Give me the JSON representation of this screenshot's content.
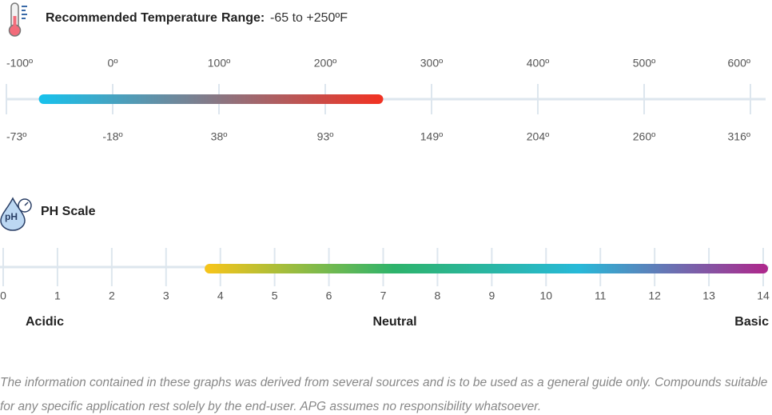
{
  "temperature": {
    "title": "Recommended Temperature",
    "range_label": "Range:",
    "range_text": "-65 to +250ºF",
    "xlim": [
      -100,
      600
    ],
    "fahrenheit_ticks": [
      {
        "value": -100,
        "label": "-100º"
      },
      {
        "value": 0,
        "label": "0º"
      },
      {
        "value": 100,
        "label": "100º"
      },
      {
        "value": 200,
        "label": "200º"
      },
      {
        "value": 300,
        "label": "300º"
      },
      {
        "value": 400,
        "label": "400º"
      },
      {
        "value": 500,
        "label": "500º"
      },
      {
        "value": 600,
        "label": "600º"
      }
    ],
    "celsius_ticks": [
      {
        "value": -73,
        "label": "-73º"
      },
      {
        "value": -18,
        "label": "-18º"
      },
      {
        "value": 38,
        "label": "38º"
      },
      {
        "value": 93,
        "label": "93º"
      },
      {
        "value": 149,
        "label": "149º"
      },
      {
        "value": 204,
        "label": "204º"
      },
      {
        "value": 260,
        "label": "260º"
      },
      {
        "value": 316,
        "label": "316º"
      }
    ],
    "bar": {
      "from": -65,
      "to": 250,
      "colors": [
        "#19c0ea",
        "#f03324"
      ]
    }
  },
  "ph": {
    "title": "PH Scale",
    "xlim": [
      0,
      14
    ],
    "ticks": [
      0,
      1,
      2,
      3,
      4,
      5,
      6,
      7,
      8,
      9,
      10,
      11,
      12,
      13,
      14
    ],
    "bar": {
      "from": 3.8,
      "to": 14,
      "colors": [
        "#f4c41c",
        "#2db36b",
        "#27b9d8",
        "#ac2a8d"
      ]
    },
    "zones": [
      "Acidic",
      "Neutral",
      "Basic"
    ]
  },
  "disclaimer": [
    "The information contained in these graphs was derived from several sources and is to be used as a general guide only. Compounds suitable",
    "for any specific application rest solely by the end-user. APG assumes no responsibility whatsoever."
  ]
}
